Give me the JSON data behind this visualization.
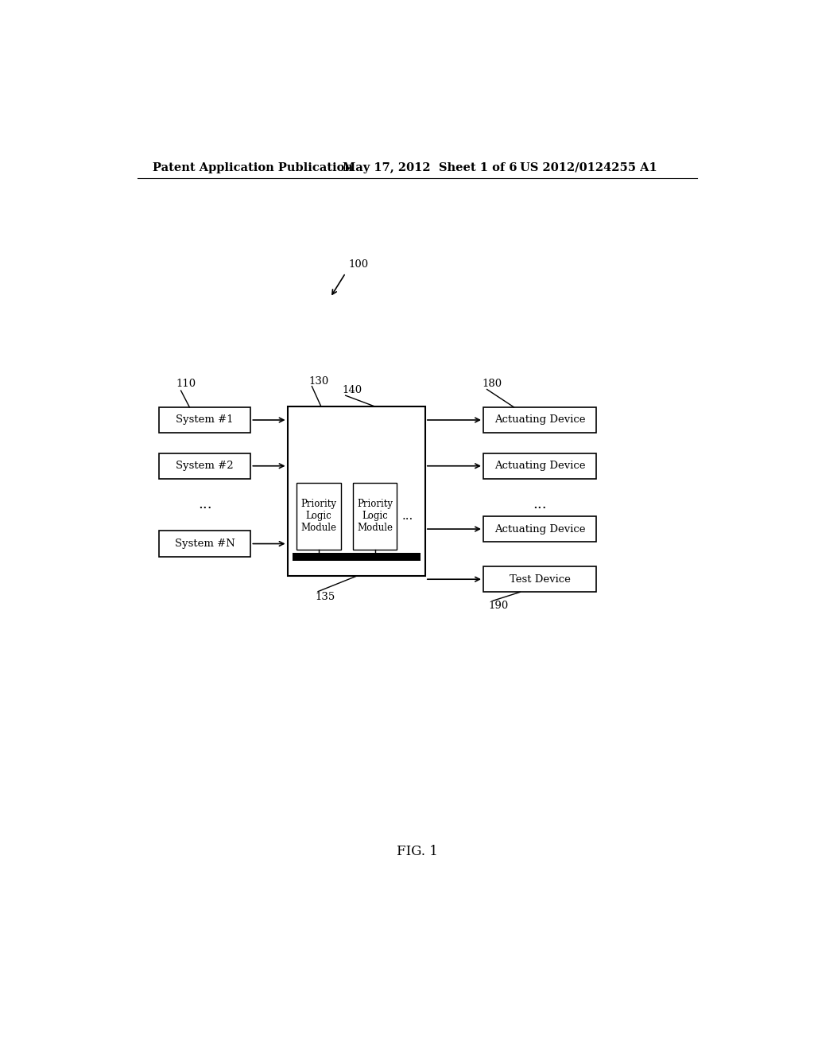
{
  "bg_color": "#ffffff",
  "header_left": "Patent Application Publication",
  "header_mid": "May 17, 2012  Sheet 1 of 6",
  "header_right": "US 2012/0124255 A1",
  "fig_label": "FIG. 1",
  "ref_100": "100",
  "ref_110": "110",
  "ref_130": "130",
  "ref_135": "135",
  "ref_140": "140",
  "ref_180": "180",
  "ref_190": "190",
  "left_boxes": [
    "System #1",
    "System #2",
    "System #N"
  ],
  "left_dots": "...",
  "center_box_label1": "Priority\nLogic\nModule",
  "center_box_label2": "Priority\nLogic\nModule",
  "center_dots": "...",
  "right_boxes": [
    "Actuating Device",
    "Actuating Device",
    "Actuating Device"
  ],
  "right_dots": "...",
  "test_box": "Test Device",
  "font_size_header": 10.5,
  "font_size_label": 9.5,
  "font_size_ref": 9.5,
  "font_size_dots": 13
}
